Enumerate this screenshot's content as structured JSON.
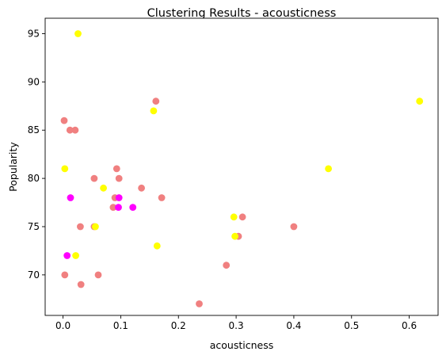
{
  "chart_data": {
    "type": "scatter",
    "title": "Clustering Results - acousticness",
    "xlabel": "acousticness",
    "ylabel": "Popularity",
    "xlim": [
      -0.031,
      0.65
    ],
    "ylim": [
      65.8,
      96.6
    ],
    "xticks": [
      0.0,
      0.1,
      0.2,
      0.3,
      0.4,
      0.5,
      0.6
    ],
    "xtick_labels": [
      "0.0",
      "0.1",
      "0.2",
      "0.3",
      "0.4",
      "0.5",
      "0.6"
    ],
    "yticks": [
      70,
      75,
      80,
      85,
      90,
      95
    ],
    "ytick_labels": [
      "70",
      "75",
      "80",
      "85",
      "90",
      "95"
    ],
    "grid": false,
    "legend": "none",
    "clusters": [
      {
        "color": "#f08080",
        "points": [
          {
            "x": 0.002,
            "y": 86
          },
          {
            "x": 0.012,
            "y": 85
          },
          {
            "x": 0.021,
            "y": 85
          },
          {
            "x": 0.161,
            "y": 88
          },
          {
            "x": 0.054,
            "y": 80
          },
          {
            "x": 0.093,
            "y": 81
          },
          {
            "x": 0.097,
            "y": 80
          },
          {
            "x": 0.136,
            "y": 79
          },
          {
            "x": 0.09,
            "y": 78
          },
          {
            "x": 0.171,
            "y": 78
          },
          {
            "x": 0.087,
            "y": 77
          },
          {
            "x": 0.03,
            "y": 75
          },
          {
            "x": 0.054,
            "y": 75
          },
          {
            "x": 0.311,
            "y": 76
          },
          {
            "x": 0.304,
            "y": 74
          },
          {
            "x": 0.4,
            "y": 75
          },
          {
            "x": 0.283,
            "y": 71
          },
          {
            "x": 0.003,
            "y": 70
          },
          {
            "x": 0.061,
            "y": 70
          },
          {
            "x": 0.031,
            "y": 69
          },
          {
            "x": 0.236,
            "y": 67
          }
        ]
      },
      {
        "color": "#ffff00",
        "points": [
          {
            "x": 0.026,
            "y": 95
          },
          {
            "x": 0.618,
            "y": 88
          },
          {
            "x": 0.157,
            "y": 87
          },
          {
            "x": 0.003,
            "y": 81
          },
          {
            "x": 0.46,
            "y": 81
          },
          {
            "x": 0.07,
            "y": 79
          },
          {
            "x": 0.296,
            "y": 76
          },
          {
            "x": 0.298,
            "y": 74
          },
          {
            "x": 0.163,
            "y": 73
          },
          {
            "x": 0.022,
            "y": 72
          },
          {
            "x": 0.056,
            "y": 75
          }
        ]
      },
      {
        "color": "#ff00ff",
        "points": [
          {
            "x": 0.013,
            "y": 78
          },
          {
            "x": 0.097,
            "y": 78
          },
          {
            "x": 0.096,
            "y": 77
          },
          {
            "x": 0.121,
            "y": 77
          },
          {
            "x": 0.007,
            "y": 72
          }
        ]
      }
    ]
  }
}
